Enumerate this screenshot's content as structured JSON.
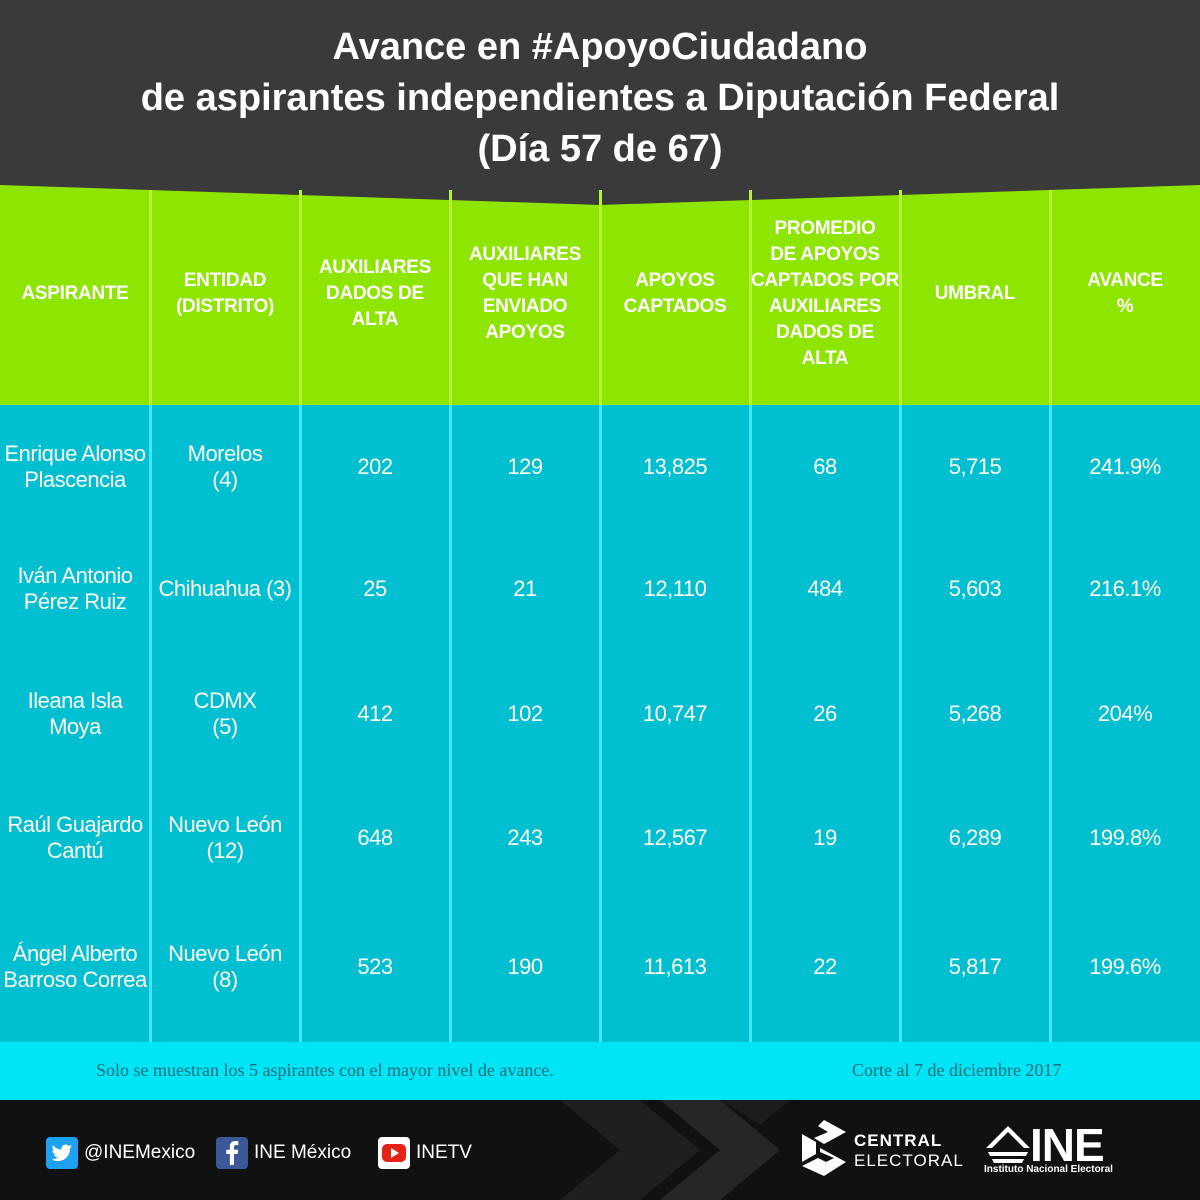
{
  "title": {
    "line1": "Avance en #ApoyoCiudadano",
    "line2": "de aspirantes independientes a Diputación Federal",
    "line3": "(Día 57 de 67)"
  },
  "colors": {
    "header_bg": "#3a3a3a",
    "table_head_bg": "#8ee500",
    "table_body_bg": "#00bfd1",
    "footnote_bg": "#00e5f5",
    "footer_bg": "#111111"
  },
  "table": {
    "headers": [
      [
        "ASPIRANTE"
      ],
      [
        "ENTIDAD",
        "(DISTRITO)"
      ],
      [
        "AUXILIARES",
        "DADOS DE",
        "ALTA"
      ],
      [
        "AUXILIARES",
        "QUE HAN",
        "ENVIADO",
        "APOYOS"
      ],
      [
        "APOYOS",
        "CAPTADOS"
      ],
      [
        "PROMEDIO",
        "DE APOYOS",
        "CAPTADOS POR",
        "AUXILIARES",
        "DADOS DE",
        "ALTA"
      ],
      [
        "UMBRAL"
      ],
      [
        "AVANCE",
        "%"
      ]
    ],
    "rows": [
      {
        "aspirante": [
          "Enrique Alonso",
          "Plascencia"
        ],
        "entidad": [
          "Morelos",
          "(4)"
        ],
        "auxiliares_alta": "202",
        "auxiliares_enviado": "129",
        "apoyos": "13,825",
        "promedio": "68",
        "umbral": "5,715",
        "avance": "241.9%"
      },
      {
        "aspirante": [
          "Iván Antonio",
          "Pérez Ruiz"
        ],
        "entidad": [
          "Chihuahua (3)"
        ],
        "auxiliares_alta": "25",
        "auxiliares_enviado": "21",
        "apoyos": "12,110",
        "promedio": "484",
        "umbral": "5,603",
        "avance": "216.1%"
      },
      {
        "aspirante": [
          "Ileana Isla",
          "Moya"
        ],
        "entidad": [
          "CDMX",
          "(5)"
        ],
        "auxiliares_alta": "412",
        "auxiliares_enviado": "102",
        "apoyos": "10,747",
        "promedio": "26",
        "umbral": "5,268",
        "avance": "204%"
      },
      {
        "aspirante": [
          "Raúl Guajardo",
          "Cantú"
        ],
        "entidad": [
          "Nuevo León",
          "(12)"
        ],
        "auxiliares_alta": "648",
        "auxiliares_enviado": "243",
        "apoyos": "12,567",
        "promedio": "19",
        "umbral": "6,289",
        "avance": "199.8%"
      },
      {
        "aspirante": [
          "Ángel Alberto",
          "Barroso Correa"
        ],
        "entidad": [
          "Nuevo León",
          "(8)"
        ],
        "auxiliares_alta": "523",
        "auxiliares_enviado": "190",
        "apoyos": "11,613",
        "promedio": "22",
        "umbral": "5,817",
        "avance": "199.6%"
      }
    ]
  },
  "footnote": {
    "left": "Solo se muestran los 5 aspirantes con el mayor nivel de avance.",
    "right": "Corte al 7 de diciembre 2017"
  },
  "footer": {
    "twitter": {
      "label": "@INEMexico",
      "icon": "twitter-icon"
    },
    "facebook": {
      "label": "INE México",
      "icon": "facebook-icon"
    },
    "youtube": {
      "label": "INETV",
      "icon": "youtube-icon"
    },
    "central_electoral": {
      "line1": "CENTRAL",
      "line2": "ELECTORAL"
    },
    "ine": {
      "name": "INE",
      "subtitle": "Instituto Nacional Electoral"
    }
  }
}
